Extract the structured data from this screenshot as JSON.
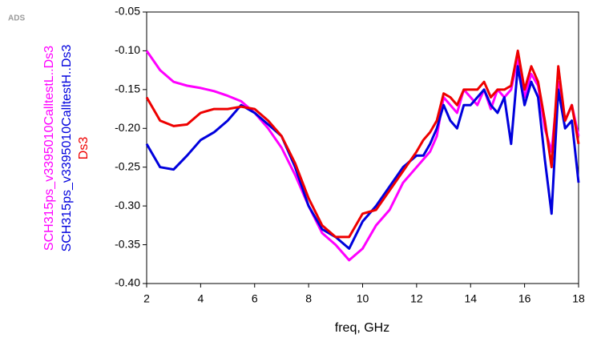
{
  "chart_data": {
    "type": "line",
    "annotation": "ADS",
    "x_label": "freq, GHz",
    "x": [
      2,
      2.5,
      3,
      3.5,
      4,
      4.5,
      5,
      5.5,
      6,
      6.5,
      7,
      7.5,
      8,
      8.5,
      9,
      9.5,
      10,
      10.5,
      11,
      11.5,
      12,
      12.25,
      12.5,
      12.75,
      13,
      13.25,
      13.5,
      13.75,
      14,
      14.25,
      14.5,
      14.75,
      15,
      15.25,
      15.5,
      15.75,
      16,
      16.25,
      16.5,
      16.75,
      17,
      17.25,
      17.5,
      17.75,
      18
    ],
    "series": [
      {
        "name": "SCH315ps_v3395010CalltestL..Ds3",
        "color": "#ff00ff",
        "values": [
          -0.1,
          -0.125,
          -0.14,
          -0.145,
          -0.148,
          -0.152,
          -0.158,
          -0.165,
          -0.18,
          -0.2,
          -0.225,
          -0.26,
          -0.3,
          -0.335,
          -0.35,
          -0.37,
          -0.355,
          -0.325,
          -0.305,
          -0.27,
          -0.25,
          -0.24,
          -0.23,
          -0.21,
          -0.16,
          -0.17,
          -0.18,
          -0.15,
          -0.16,
          -0.17,
          -0.15,
          -0.175,
          -0.15,
          -0.16,
          -0.15,
          -0.11,
          -0.16,
          -0.13,
          -0.145,
          -0.2,
          -0.23,
          -0.14,
          -0.19,
          -0.17,
          -0.21
        ]
      },
      {
        "name": "SCH315ps_v3395010CalltestH..Ds3",
        "color": "#0000dd",
        "values": [
          -0.22,
          -0.25,
          -0.253,
          -0.235,
          -0.215,
          -0.205,
          -0.19,
          -0.17,
          -0.18,
          -0.195,
          -0.21,
          -0.25,
          -0.3,
          -0.33,
          -0.34,
          -0.355,
          -0.32,
          -0.3,
          -0.275,
          -0.25,
          -0.235,
          -0.235,
          -0.22,
          -0.2,
          -0.17,
          -0.19,
          -0.2,
          -0.17,
          -0.17,
          -0.16,
          -0.15,
          -0.17,
          -0.18,
          -0.16,
          -0.22,
          -0.12,
          -0.17,
          -0.14,
          -0.16,
          -0.24,
          -0.31,
          -0.15,
          -0.2,
          -0.19,
          -0.27
        ]
      },
      {
        "name": "Ds3",
        "color": "#ee0000",
        "values": [
          -0.16,
          -0.19,
          -0.197,
          -0.195,
          -0.18,
          -0.175,
          -0.175,
          -0.172,
          -0.175,
          -0.19,
          -0.21,
          -0.245,
          -0.29,
          -0.325,
          -0.34,
          -0.34,
          -0.31,
          -0.305,
          -0.28,
          -0.255,
          -0.23,
          -0.215,
          -0.205,
          -0.19,
          -0.155,
          -0.16,
          -0.17,
          -0.15,
          -0.15,
          -0.15,
          -0.14,
          -0.16,
          -0.15,
          -0.15,
          -0.145,
          -0.1,
          -0.15,
          -0.12,
          -0.14,
          -0.19,
          -0.25,
          -0.12,
          -0.19,
          -0.17,
          -0.22
        ]
      }
    ],
    "xlim": [
      2,
      18
    ],
    "xticks": [
      2,
      4,
      6,
      8,
      10,
      12,
      14,
      16,
      18
    ],
    "ylim": [
      -0.4,
      -0.05
    ],
    "yticks": [
      -0.05,
      {
        "value": -0.1,
        "label": "-0.10"
      },
      -0.15,
      {
        "value": -0.2,
        "label": "-0.20"
      },
      -0.25,
      {
        "value": -0.3,
        "label": "-0.30"
      },
      -0.35,
      {
        "value": -0.4,
        "label": "-0.40"
      }
    ],
    "grid": false
  }
}
